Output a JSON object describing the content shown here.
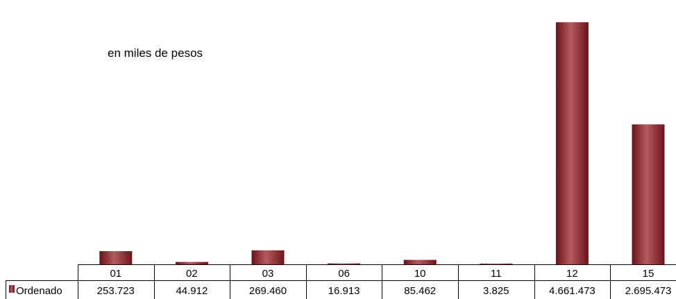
{
  "chart_data": {
    "type": "bar",
    "unit_label": "en miles de pesos",
    "categories": [
      "01",
      "02",
      "03",
      "06",
      "10",
      "11",
      "12",
      "15"
    ],
    "series": [
      {
        "name": "Ordenado",
        "values": [
          253.723,
          44.912,
          269.46,
          16.913,
          85.462,
          3.825,
          4661.473,
          2695.473
        ],
        "value_labels": [
          "253.723",
          "44.912",
          "269.460",
          "16.913",
          "85.462",
          "3.825",
          "4.661.473",
          "2.695.473"
        ],
        "color": "#8b1a1f",
        "highlight_color": "#c46a6e"
      }
    ],
    "legend_placement": "left of data table",
    "data_table": true,
    "grid": false,
    "ylim": [
      0,
      4850
    ]
  }
}
